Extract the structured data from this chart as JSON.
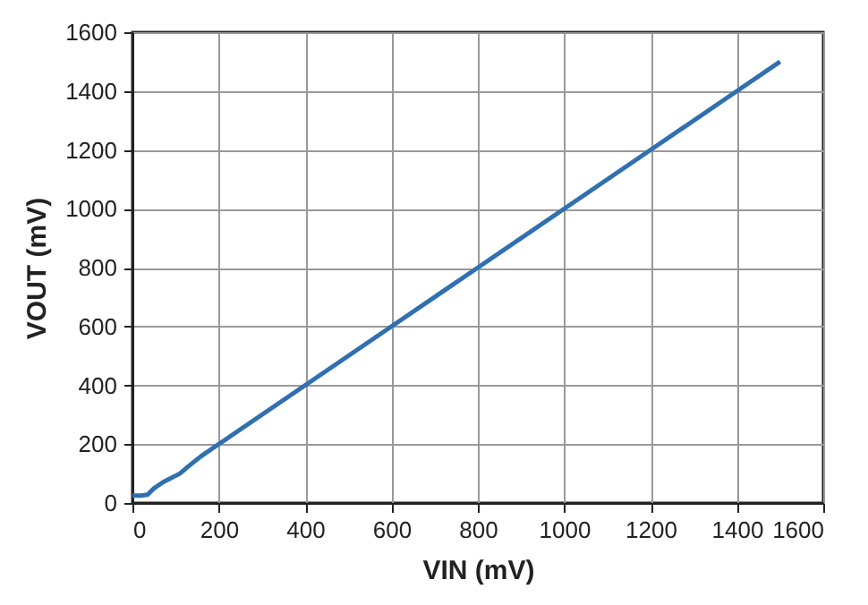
{
  "chart_data": {
    "type": "line",
    "xlabel": "VIN (mV)",
    "ylabel": "VOUT (mV)",
    "x": [
      0,
      20,
      35,
      50,
      70,
      90,
      110,
      130,
      160,
      200,
      400,
      600,
      800,
      1000,
      1200,
      1400,
      1500
    ],
    "series": [
      {
        "color": "#3070b0",
        "values": [
          25,
          25,
          28,
          50,
          70,
          85,
          100,
          125,
          160,
          200,
          400,
          600,
          800,
          1000,
          1200,
          1400,
          1500
        ]
      }
    ],
    "xlim": [
      0,
      1600
    ],
    "xticks": [
      0,
      200,
      400,
      600,
      800,
      1000,
      1200,
      1400,
      1600
    ],
    "ylim": [
      0,
      1600
    ],
    "yticks": [
      0,
      200,
      400,
      600,
      800,
      1000,
      1200,
      1400,
      1600
    ],
    "grid": true,
    "marker": "none",
    "line_style": "solid"
  }
}
